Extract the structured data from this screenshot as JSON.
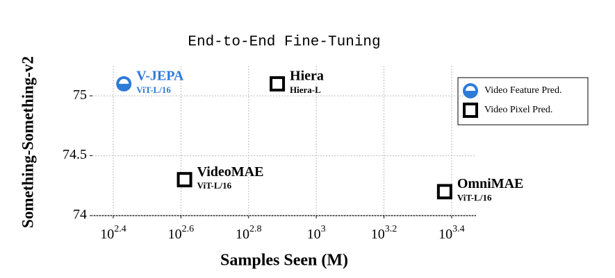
{
  "chart_data": {
    "type": "scatter",
    "title": "End-to-End Fine-Tuning",
    "xlabel": "Samples Seen (M)",
    "ylabel": "Something-Something-v2",
    "xscale": "log",
    "xlim": [
      218,
      2965
    ],
    "xticks": [
      {
        "value": 251.19,
        "label": "10^2.4"
      },
      {
        "value": 398.11,
        "label": "10^2.6"
      },
      {
        "value": 630.96,
        "label": "10^2.8"
      },
      {
        "value": 1000,
        "label": "10^3"
      },
      {
        "value": 1584.89,
        "label": "10^3.2"
      },
      {
        "value": 2511.89,
        "label": "10^3.4"
      }
    ],
    "ylim": [
      74,
      75.25
    ],
    "yticks": [
      74,
      74.5,
      75
    ],
    "grid": true,
    "legend": "upper right",
    "series": [
      {
        "name": "Video Feature Pred.",
        "color": "#2e7ad8",
        "marker": "half-circle",
        "x": [
          270
        ],
        "values": [
          75.1
        ],
        "labels": [
          "V-JEPA"
        ],
        "sublabels": [
          "ViT-L/16"
        ]
      },
      {
        "name": "Video Pixel Pred.",
        "color": "#000000",
        "marker": "square",
        "x": [
          767,
          408,
          2395
        ],
        "values": [
          75.1,
          74.3,
          74.2
        ],
        "labels": [
          "Hiera",
          "VideoMAE",
          "OmniMAE"
        ],
        "sublabels": [
          "Hiera-L",
          "ViT-L/16",
          "ViT-L/16"
        ]
      }
    ]
  }
}
